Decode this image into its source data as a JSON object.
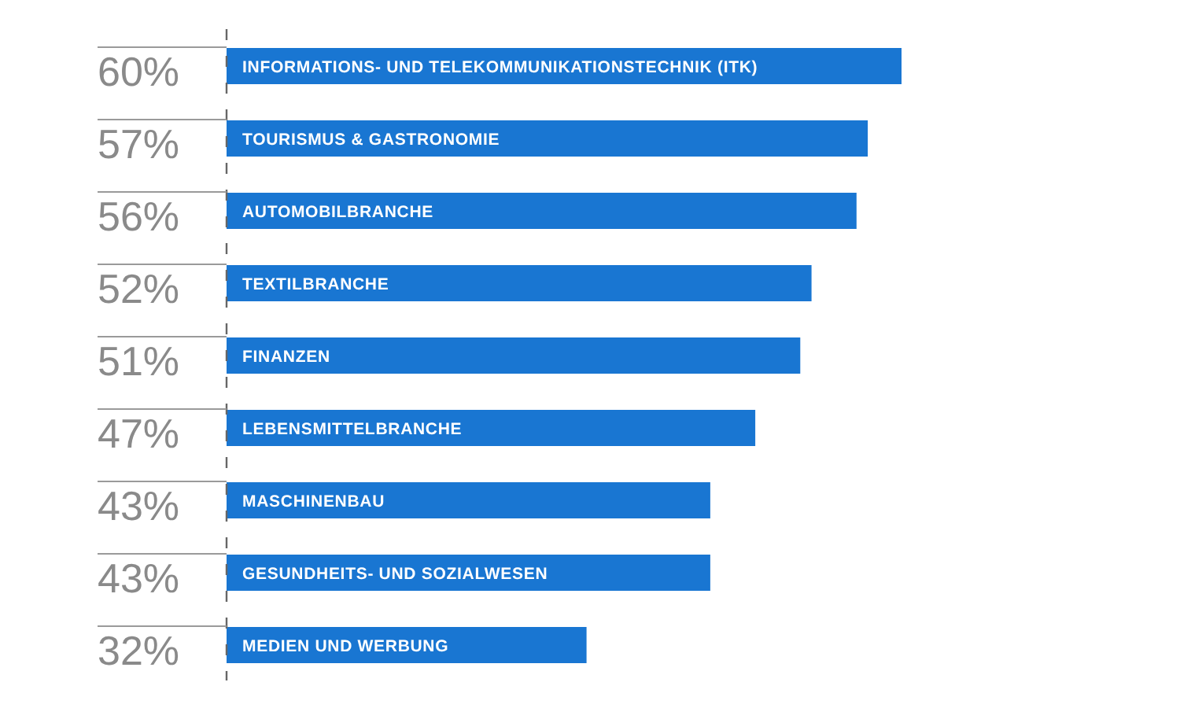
{
  "chart_data": {
    "type": "bar",
    "orientation": "horizontal",
    "categories": [
      "INFORMATIONS- UND TELEKOMMUNIKATIONSTECHNIK (ITK)",
      "TOURISMUS & GASTRONOMIE",
      "AUTOMOBILBRANCHE",
      "TEXTILBRANCHE",
      "FINANZEN",
      "LEBENSMITTELBRANCHE",
      "MASCHINENBAU",
      "GESUNDHEITS- UND SOZIALWESEN",
      "MEDIEN UND WERBUNG"
    ],
    "values": [
      60,
      57,
      56,
      52,
      51,
      47,
      43,
      43,
      32
    ],
    "value_labels": [
      "60%",
      "57%",
      "56%",
      "52%",
      "51%",
      "47%",
      "43%",
      "43%",
      "32%"
    ],
    "color": "#1976d2",
    "tick_labels": "y"
  }
}
